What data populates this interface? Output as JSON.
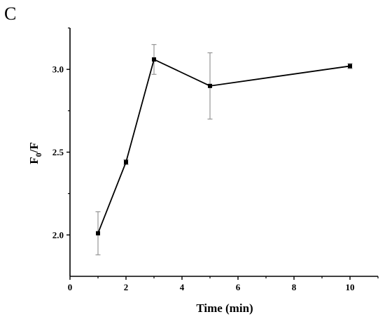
{
  "panel_label": "C",
  "chart_data": {
    "type": "line",
    "xlabel": "Time (min)",
    "ylabel_main": "F",
    "ylabel_sub": "0",
    "ylabel_rest": "/F",
    "xlim": [
      0,
      11
    ],
    "ylim": [
      1.75,
      3.25
    ],
    "x_ticks": [
      0,
      2,
      4,
      6,
      8,
      10
    ],
    "y_ticks": [
      2.0,
      2.5,
      3.0
    ],
    "x_tick_labels": [
      "0",
      "2",
      "4",
      "6",
      "8",
      "10"
    ],
    "y_tick_labels": [
      "2.0",
      "2.5",
      "3.0"
    ],
    "series": [
      {
        "x": [
          1,
          2,
          3,
          5,
          10
        ],
        "values": [
          2.01,
          2.44,
          3.06,
          2.9,
          3.02
        ],
        "error": [
          0.13,
          0.015,
          0.09,
          0.2,
          0.015
        ]
      }
    ],
    "line_color": "#000000",
    "errorbar_color": "#8c8c8c",
    "grid": false
  }
}
